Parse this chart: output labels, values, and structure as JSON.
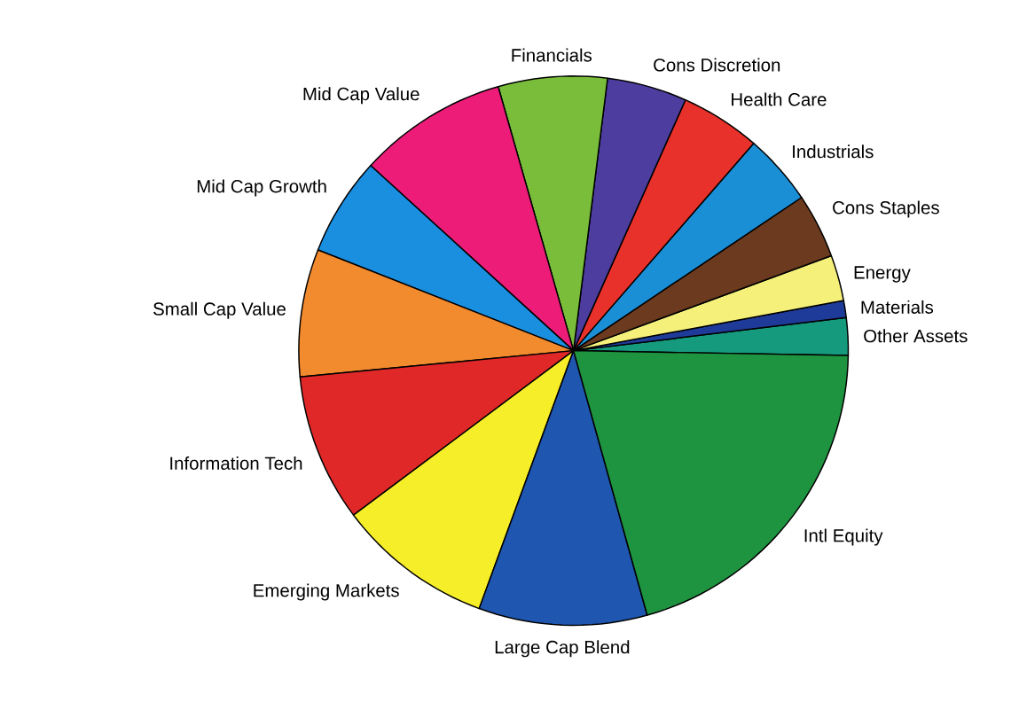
{
  "chart_data": {
    "type": "pie",
    "categories": [
      "Other Assets",
      "Materials",
      "Energy",
      "Cons Staples",
      "Industrials",
      "Health Care",
      "Cons Discretion",
      "Financials",
      "Mid Cap Value",
      "Mid Cap Growth",
      "Small Cap Value",
      "Information Tech",
      "Emerging Markets",
      "Large Cap Blend",
      "Intl Equity"
    ],
    "values": [
      2.2,
      1.0,
      2.7,
      3.8,
      4.2,
      4.7,
      4.7,
      6.4,
      8.8,
      5.8,
      7.5,
      8.7,
      9.2,
      9.9,
      20.4
    ],
    "colors": [
      "#169a7e",
      "#1f3b9a",
      "#f5f07a",
      "#6b3a1f",
      "#1b8fd6",
      "#e8312a",
      "#4c3d9e",
      "#79bd3a",
      "#ec1c78",
      "#1a8fe0",
      "#f28a2e",
      "#e02828",
      "#f7ee2a",
      "#1e56b0",
      "#1f9440"
    ]
  }
}
